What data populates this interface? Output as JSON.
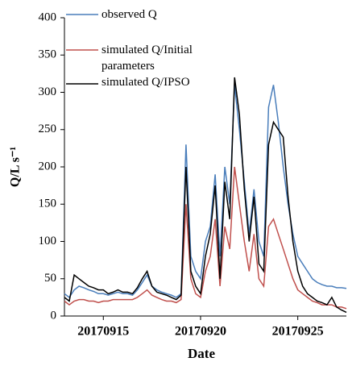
{
  "chart_data": {
    "type": "line",
    "x": [
      13,
      13.25,
      13.5,
      13.75,
      14,
      14.25,
      14.5,
      14.75,
      15,
      15.25,
      15.5,
      15.75,
      16,
      16.25,
      16.5,
      16.75,
      17,
      17.25,
      17.5,
      17.75,
      18,
      18.25,
      18.5,
      18.75,
      19,
      19.25,
      19.5,
      19.75,
      20,
      20.25,
      20.5,
      20.75,
      21,
      21.25,
      21.5,
      21.75,
      22,
      22.25,
      22.5,
      22.75,
      23,
      23.25,
      23.5,
      23.75,
      24,
      24.25,
      24.5,
      24.75,
      25,
      25.25,
      25.5,
      25.75,
      26,
      26.25,
      26.5,
      26.75,
      27,
      27.25,
      27.5
    ],
    "series": [
      {
        "name": "observed Q",
        "color": "#4a7ebb",
        "values": [
          30,
          25,
          35,
          40,
          38,
          35,
          33,
          30,
          30,
          28,
          30,
          32,
          30,
          30,
          28,
          35,
          45,
          55,
          40,
          35,
          32,
          30,
          28,
          25,
          30,
          230,
          80,
          60,
          50,
          100,
          120,
          190,
          80,
          200,
          150,
          310,
          250,
          180,
          110,
          170,
          100,
          80,
          280,
          310,
          260,
          200,
          150,
          110,
          80,
          70,
          60,
          50,
          45,
          42,
          40,
          40,
          38,
          38,
          37
        ]
      },
      {
        "name": "simulated Q/Initial parameters",
        "color": "#c0504d",
        "values": [
          20,
          15,
          20,
          22,
          22,
          20,
          20,
          18,
          20,
          20,
          22,
          22,
          22,
          22,
          22,
          25,
          30,
          35,
          28,
          25,
          22,
          20,
          20,
          18,
          22,
          150,
          50,
          30,
          25,
          60,
          80,
          130,
          40,
          120,
          90,
          200,
          150,
          100,
          60,
          110,
          50,
          40,
          120,
          130,
          110,
          90,
          70,
          50,
          35,
          30,
          25,
          20,
          18,
          15,
          15,
          15,
          12,
          12,
          10
        ]
      },
      {
        "name": "simulated Q/IPSO",
        "color": "#000000",
        "values": [
          25,
          20,
          55,
          50,
          45,
          40,
          38,
          35,
          35,
          30,
          32,
          35,
          32,
          32,
          30,
          38,
          50,
          60,
          40,
          32,
          30,
          28,
          25,
          22,
          28,
          200,
          60,
          40,
          30,
          80,
          110,
          175,
          50,
          180,
          130,
          320,
          270,
          170,
          100,
          160,
          70,
          60,
          230,
          260,
          250,
          240,
          160,
          100,
          60,
          40,
          30,
          25,
          20,
          18,
          15,
          25,
          12,
          8,
          5
        ]
      }
    ],
    "xlim": [
      13,
      27.5
    ],
    "xticks": [
      {
        "value": 15,
        "label": "20170915"
      },
      {
        "value": 20,
        "label": "20170920"
      },
      {
        "value": 25,
        "label": "20170925"
      }
    ],
    "ylim": [
      0,
      400
    ],
    "yticks": [
      0,
      50,
      100,
      150,
      200,
      250,
      300,
      350,
      400
    ],
    "x_label": "Date",
    "y_label": "Q/L s⁻¹"
  }
}
